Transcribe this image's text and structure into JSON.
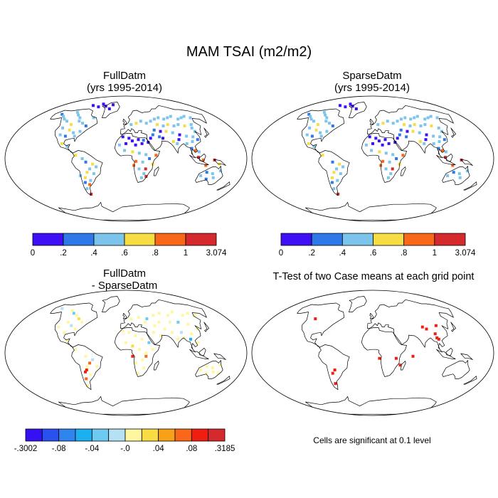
{
  "main_title": "MAM TSAI (m2/m2)",
  "panels": {
    "p1": {
      "title_line1": "FullDatm",
      "title_line2": "(yrs 1995-2014)"
    },
    "p2": {
      "title_line1": "SparseDatm",
      "title_line2": "(yrs 1995-2014)"
    },
    "p3": {
      "title_line1": "FullDatm",
      "title_line2": "- SparseDatm"
    },
    "p4": {
      "title_line1": "T-Test of two Case means at each grid point",
      "footnote": "Cells are significant at 0.1 level"
    }
  },
  "chart_data": [
    {
      "type": "heatmap",
      "projection": "robinson",
      "title": "FullDatm (yrs 1995-2014)",
      "colorbar": {
        "tick_labels": [
          "0",
          ".2",
          ".4",
          ".6",
          ".8",
          "1",
          "3.074"
        ],
        "bins": [
          0,
          0.2,
          0.4,
          0.6,
          0.8,
          1,
          3.074
        ],
        "colors": [
          "#3f10f5",
          "#2f78e8",
          "#7cc4ec",
          "#f8dc44",
          "#f86818",
          "#d42a2e"
        ]
      }
    },
    {
      "type": "heatmap",
      "projection": "robinson",
      "title": "SparseDatm (yrs 1995-2014)",
      "colorbar": {
        "tick_labels": [
          "0",
          ".2",
          ".4",
          ".6",
          ".8",
          "1",
          "3.074"
        ],
        "bins": [
          0,
          0.2,
          0.4,
          0.6,
          0.8,
          1,
          3.074
        ],
        "colors": [
          "#3f10f5",
          "#2f78e8",
          "#7cc4ec",
          "#f8dc44",
          "#f86818",
          "#d42a2e"
        ]
      }
    },
    {
      "type": "heatmap",
      "projection": "robinson",
      "title": "FullDatm - SparseDatm",
      "colorbar": {
        "tick_labels": [
          "-.3002",
          "-.08",
          "-.04",
          "-.0",
          ".04",
          ".08",
          ".3185"
        ],
        "colors": [
          "#3410f2",
          "#2a50ef",
          "#2f84ee",
          "#1cb0f0",
          "#6ecaf0",
          "#b4e2f4",
          "#fff7a0",
          "#f8dc44",
          "#f8a018",
          "#f86818",
          "#f01e10",
          "#d42a2e"
        ]
      }
    },
    {
      "type": "heatmap",
      "projection": "robinson",
      "title": "T-Test of two Case means at each grid point",
      "note": "Cells are significant at 0.1 level",
      "colors": [
        "#f01e10"
      ]
    }
  ]
}
